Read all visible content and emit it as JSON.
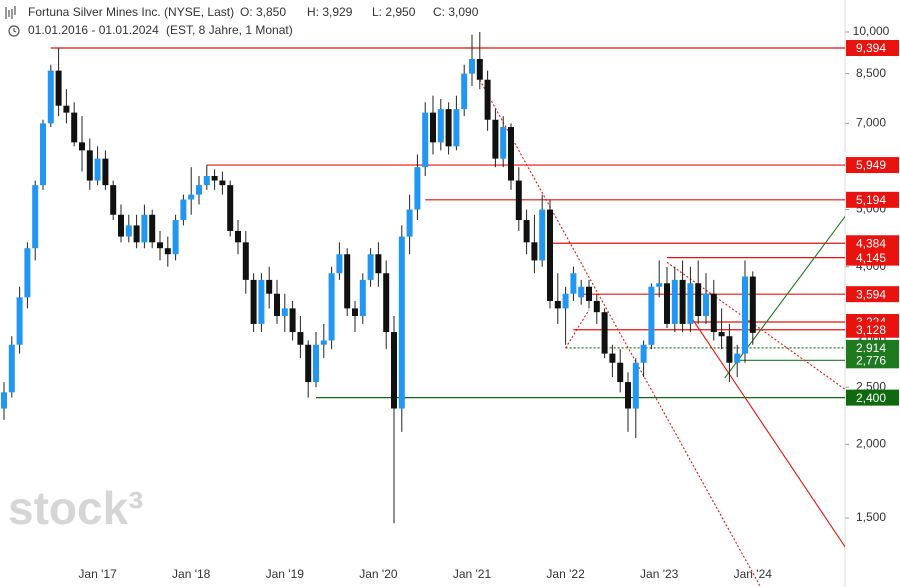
{
  "chart_data": {
    "type": "candlestick",
    "title": "Fortuna Silver Mines Inc. (NYSE, Last)",
    "quote": [
      "O: 3,850",
      "H: 3,929",
      "L: 2,950",
      "C: 3,090"
    ],
    "period": "01.01.2016 - 01.01.2024",
    "period_info": "(EST, 8 Jahre, 1 Monat)",
    "watermark": "stock³",
    "log_scale": true,
    "up_color": "#2196f3",
    "down_color": "#111111",
    "categories": [
      null,
      null,
      null,
      null,
      null,
      null,
      null,
      null,
      null,
      null,
      null,
      null,
      "Jan '17",
      null,
      null,
      null,
      null,
      null,
      null,
      null,
      null,
      null,
      null,
      null,
      "Jan '18",
      null,
      null,
      null,
      null,
      null,
      null,
      null,
      null,
      null,
      null,
      null,
      "Jan '19",
      null,
      null,
      null,
      null,
      null,
      null,
      null,
      null,
      null,
      null,
      null,
      "Jan '20",
      null,
      null,
      null,
      null,
      null,
      null,
      null,
      null,
      null,
      null,
      null,
      "Jan '21",
      null,
      null,
      null,
      null,
      null,
      null,
      null,
      null,
      null,
      null,
      null,
      "Jan '22",
      null,
      null,
      null,
      null,
      null,
      null,
      null,
      null,
      null,
      null,
      null,
      "Jan '23",
      null,
      null,
      null,
      null,
      null,
      null,
      null,
      null,
      null,
      null,
      null,
      "Jan '24"
    ],
    "open": [
      2.3,
      2.45,
      2.95,
      3.55,
      4.3,
      5.5,
      7.0,
      8.6,
      7.5,
      7.3,
      6.5,
      6.3,
      5.6,
      6.1,
      5.5,
      4.9,
      4.5,
      4.7,
      4.4,
      4.9,
      4.4,
      4.3,
      4.2,
      4.8,
      5.2,
      5.3,
      5.5,
      5.7,
      5.6,
      5.5,
      4.6,
      4.4,
      3.8,
      3.2,
      3.8,
      3.6,
      3.3,
      3.4,
      3.1,
      2.95,
      2.55,
      2.95,
      3.0,
      3.9,
      4.2,
      3.4,
      3.3,
      3.8,
      4.2,
      3.9,
      3.1,
      2.3,
      4.5,
      5.0,
      5.9,
      7.3,
      6.5,
      7.4,
      6.4,
      7.4,
      8.5,
      9.0,
      8.3,
      7.1,
      6.1,
      6.9,
      5.6,
      4.8,
      4.4,
      4.1,
      5.0,
      3.5,
      3.4,
      3.6,
      3.55,
      3.7,
      3.5,
      3.35,
      2.85,
      2.75,
      2.55,
      2.3,
      2.75,
      2.95,
      3.7,
      3.75,
      3.2,
      3.8,
      3.2,
      3.75,
      3.3,
      3.6,
      3.1,
      3.05,
      2.75,
      2.85,
      3.85
    ],
    "high": [
      2.55,
      3.05,
      3.7,
      4.4,
      5.6,
      7.1,
      8.8,
      9.394,
      8.0,
      7.6,
      7.2,
      6.6,
      6.4,
      6.3,
      5.6,
      5.1,
      4.9,
      4.9,
      5.1,
      5.0,
      4.6,
      4.5,
      4.9,
      5.3,
      5.9,
      5.7,
      5.949,
      5.85,
      5.8,
      5.6,
      4.8,
      4.6,
      3.9,
      3.9,
      4.0,
      3.8,
      3.6,
      3.5,
      3.3,
      3.0,
      3.1,
      3.2,
      4.0,
      4.4,
      4.3,
      3.5,
      3.9,
      4.3,
      4.4,
      4.1,
      3.3,
      4.7,
      5.3,
      6.2,
      7.6,
      7.8,
      7.7,
      7.6,
      7.8,
      8.8,
      9.9,
      10.0,
      8.6,
      7.4,
      7.2,
      7.0,
      5.9,
      5.0,
      4.9,
      5.3,
      5.2,
      3.9,
      3.7,
      4.0,
      3.8,
      3.8,
      3.6,
      3.4,
      2.95,
      2.9,
      2.65,
      2.8,
      3.0,
      3.75,
      4.1,
      4.0,
      4.0,
      4.1,
      4.0,
      4.1,
      3.9,
      3.8,
      3.4,
      3.2,
      2.95,
      4.1,
      3.929
    ],
    "low": [
      2.2,
      2.4,
      2.85,
      3.4,
      4.1,
      5.4,
      6.9,
      7.2,
      7.0,
      6.4,
      5.8,
      5.4,
      5.5,
      5.4,
      4.8,
      4.4,
      4.4,
      4.3,
      4.3,
      4.3,
      4.1,
      4.0,
      4.1,
      4.7,
      4.9,
      5.1,
      5.4,
      5.4,
      5.3,
      4.5,
      4.2,
      3.6,
      3.1,
      3.1,
      3.4,
      3.2,
      3.1,
      3.0,
      2.8,
      2.4,
      2.5,
      2.8,
      2.9,
      3.8,
      3.3,
      3.1,
      3.2,
      3.7,
      3.7,
      2.9,
      1.47,
      2.1,
      4.2,
      4.8,
      5.7,
      6.2,
      6.3,
      6.2,
      6.3,
      7.2,
      8.1,
      8.0,
      6.8,
      5.9,
      5.9,
      5.4,
      4.6,
      4.2,
      3.9,
      4.0,
      3.4,
      3.2,
      2.95,
      3.5,
      3.45,
      3.4,
      3.2,
      2.8,
      2.6,
      2.45,
      2.1,
      2.05,
      2.6,
      2.9,
      3.55,
      3.15,
      3.1,
      3.1,
      3.1,
      3.2,
      3.2,
      3.0,
      2.9,
      2.55,
      2.6,
      2.75,
      2.95
    ],
    "close": [
      2.45,
      2.95,
      3.55,
      4.3,
      5.5,
      7.0,
      8.6,
      7.5,
      7.3,
      6.5,
      6.3,
      5.6,
      6.1,
      5.5,
      4.9,
      4.5,
      4.7,
      4.4,
      4.9,
      4.4,
      4.3,
      4.2,
      4.8,
      5.2,
      5.3,
      5.5,
      5.7,
      5.6,
      5.5,
      4.6,
      4.4,
      3.8,
      3.2,
      3.8,
      3.6,
      3.3,
      3.4,
      3.1,
      2.95,
      2.55,
      2.95,
      3.0,
      3.9,
      4.2,
      3.4,
      3.3,
      3.8,
      4.2,
      3.9,
      3.1,
      2.3,
      4.5,
      5.0,
      5.9,
      7.3,
      6.5,
      7.4,
      6.4,
      7.4,
      8.5,
      9.0,
      8.3,
      7.1,
      6.1,
      6.9,
      5.6,
      4.8,
      4.4,
      4.1,
      5.0,
      3.5,
      3.4,
      3.6,
      3.9,
      3.7,
      3.5,
      3.35,
      2.85,
      2.75,
      2.55,
      2.3,
      2.75,
      2.95,
      3.7,
      3.75,
      3.2,
      3.8,
      3.2,
      3.75,
      3.3,
      3.6,
      3.1,
      3.05,
      2.75,
      2.85,
      3.85,
      3.09
    ],
    "ylim": [
      1.146,
      11.33
    ],
    "yticks": [
      {
        "value": 10,
        "label": "10,000"
      },
      {
        "value": 8.5,
        "label": "8,500"
      },
      {
        "value": 7,
        "label": "7,000"
      },
      {
        "value": 6,
        "label": "6,000"
      },
      {
        "value": 5,
        "label": "5,000"
      },
      {
        "value": 4,
        "label": "4,000"
      },
      {
        "value": 3,
        "label": "3,000"
      },
      {
        "value": 2.5,
        "label": "2,500"
      },
      {
        "value": 2,
        "label": "2,000"
      },
      {
        "value": 1.5,
        "label": "1,500"
      }
    ],
    "levels": [
      {
        "value": 9.394,
        "label": "9,394",
        "color": "#e8130f",
        "start": 6
      },
      {
        "value": 5.949,
        "label": "5,949",
        "color": "#e8130f",
        "start": 26
      },
      {
        "value": 5.194,
        "label": "5,194",
        "color": "#e8130f",
        "start": 54
      },
      {
        "value": 4.384,
        "label": "4,384",
        "color": "#e8130f",
        "start": 70
      },
      {
        "value": 4.145,
        "label": "4,145",
        "color": "#e8130f",
        "start": 85
      },
      {
        "value": 3.594,
        "label": "3,594",
        "color": "#e8130f",
        "start": 74
      },
      {
        "value": 3.224,
        "label": "3,224",
        "color": "#e8130f",
        "start": 88
      },
      {
        "value": 3.128,
        "label": "3,128",
        "color": "#e8130f",
        "start": 73
      },
      {
        "value": 2.914,
        "label": "2,914",
        "color": "#1f7a1f",
        "start": 72
      },
      {
        "value": 2.776,
        "label": "2,776",
        "color": "#1f7a1f",
        "start": 94
      },
      {
        "value": 2.4,
        "label": "2,400",
        "color": "#0f6a0f",
        "start": 40
      }
    ],
    "trendlines": [
      {
        "points": [
          [
            61,
            8.29
          ],
          [
            97,
            1.146
          ]
        ],
        "color": "#e8130f",
        "dashed": true
      },
      {
        "points": [
          [
            85,
            4.07
          ],
          [
            108,
            2.47
          ]
        ],
        "color": "#e8130f",
        "dashed": true
      },
      {
        "points": [
          [
            72,
            2.914
          ],
          [
            75,
            3.38
          ]
        ],
        "color": "#e8130f",
        "dashed": true
      },
      {
        "points": [
          [
            88,
            3.3
          ],
          [
            108,
            1.33
          ]
        ],
        "color": "#e8130f",
        "dashed": false
      },
      {
        "points": [
          [
            92.4,
            2.59
          ],
          [
            108,
            4.9
          ]
        ],
        "color": "#1f7a1f",
        "dashed": false
      }
    ]
  }
}
